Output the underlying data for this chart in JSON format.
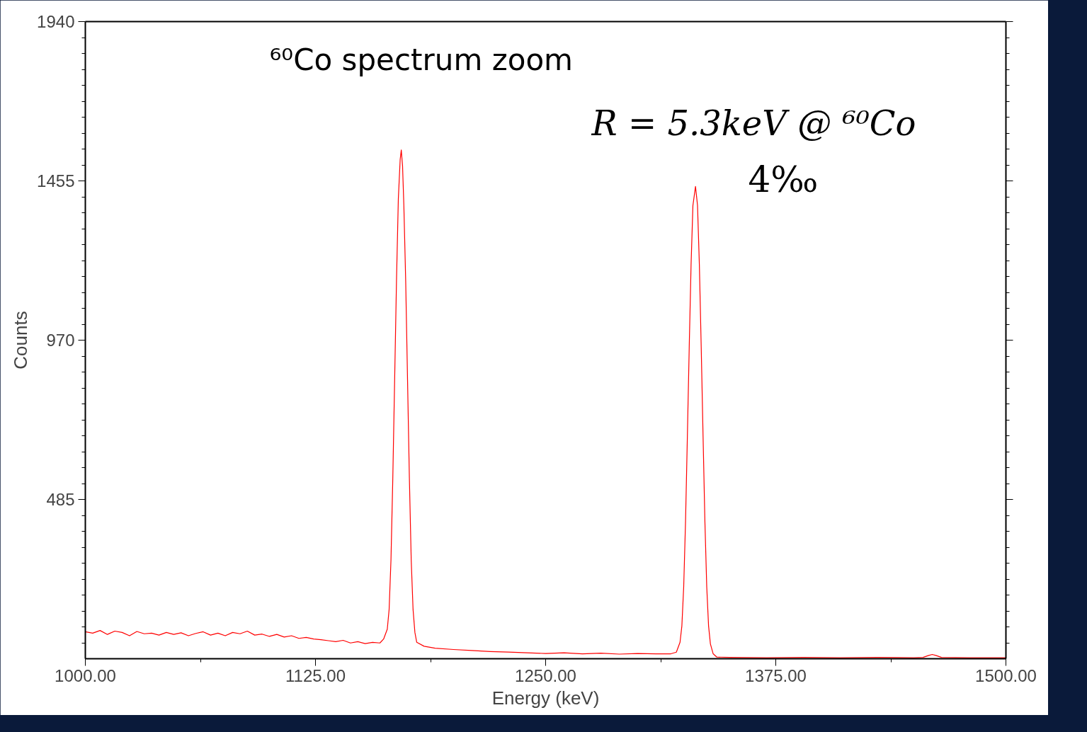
{
  "chart_data": {
    "type": "line",
    "xlabel": "Energy (keV)",
    "ylabel": "Counts",
    "annotations": [
      "⁶⁰Co spectrum zoom",
      "R = 5.3keV @ ⁶⁰Co",
      "4‰"
    ],
    "xlim": [
      1000,
      1500
    ],
    "ylim": [
      0,
      1940
    ],
    "xticks": [
      {
        "value": 1000,
        "label": "1000.00"
      },
      {
        "value": 1125,
        "label": "1125.00"
      },
      {
        "value": 1250,
        "label": "1250.00"
      },
      {
        "value": 1375,
        "label": "1375.00"
      },
      {
        "value": 1500,
        "label": "1500.00"
      }
    ],
    "yticks": [
      485,
      970,
      1455,
      1940
    ],
    "grid": false,
    "marker": "none",
    "line_style": "solid",
    "series": [
      {
        "color": "#ff0000",
        "x": [
          1000,
          1004,
          1008,
          1012,
          1016,
          1020,
          1024,
          1028,
          1032,
          1036,
          1040,
          1044,
          1048,
          1052,
          1056,
          1060,
          1064,
          1068,
          1072,
          1076,
          1080,
          1084,
          1088,
          1092,
          1096,
          1100,
          1104,
          1108,
          1112,
          1116,
          1120,
          1124,
          1128,
          1132,
          1136,
          1140,
          1144,
          1148,
          1152,
          1156,
          1160,
          1162,
          1164,
          1165,
          1166,
          1167,
          1168,
          1169,
          1170,
          1171,
          1171.6,
          1172.3,
          1173,
          1174,
          1175,
          1176,
          1177,
          1178,
          1179,
          1180,
          1184,
          1190,
          1200,
          1210,
          1220,
          1230,
          1240,
          1250,
          1260,
          1270,
          1280,
          1290,
          1300,
          1310,
          1318,
          1321,
          1323,
          1324,
          1325,
          1326,
          1327,
          1328,
          1329,
          1330,
          1331.4,
          1332.5,
          1333.5,
          1334.5,
          1335.5,
          1336.5,
          1337.5,
          1338.5,
          1339.5,
          1341,
          1343,
          1350,
          1370,
          1390,
          1410,
          1430,
          1450,
          1455,
          1458,
          1460,
          1462,
          1465,
          1480,
          1500
        ],
        "values": [
          82,
          78,
          86,
          74,
          84,
          80,
          70,
          83,
          76,
          78,
          72,
          80,
          74,
          79,
          70,
          77,
          82,
          72,
          78,
          70,
          80,
          76,
          84,
          72,
          75,
          68,
          74,
          66,
          70,
          62,
          65,
          60,
          58,
          55,
          52,
          56,
          48,
          52,
          46,
          50,
          48,
          60,
          90,
          150,
          300,
          550,
          850,
          1150,
          1400,
          1520,
          1549,
          1500,
          1380,
          1150,
          850,
          550,
          300,
          150,
          80,
          50,
          38,
          32,
          28,
          25,
          22,
          20,
          18,
          16,
          18,
          15,
          17,
          14,
          16,
          15,
          15,
          20,
          50,
          100,
          220,
          420,
          680,
          950,
          1200,
          1380,
          1438,
          1380,
          1200,
          950,
          680,
          420,
          220,
          100,
          45,
          15,
          5,
          4,
          3,
          4,
          3,
          4,
          3,
          4,
          10,
          13,
          10,
          4,
          3,
          3
        ]
      }
    ]
  }
}
